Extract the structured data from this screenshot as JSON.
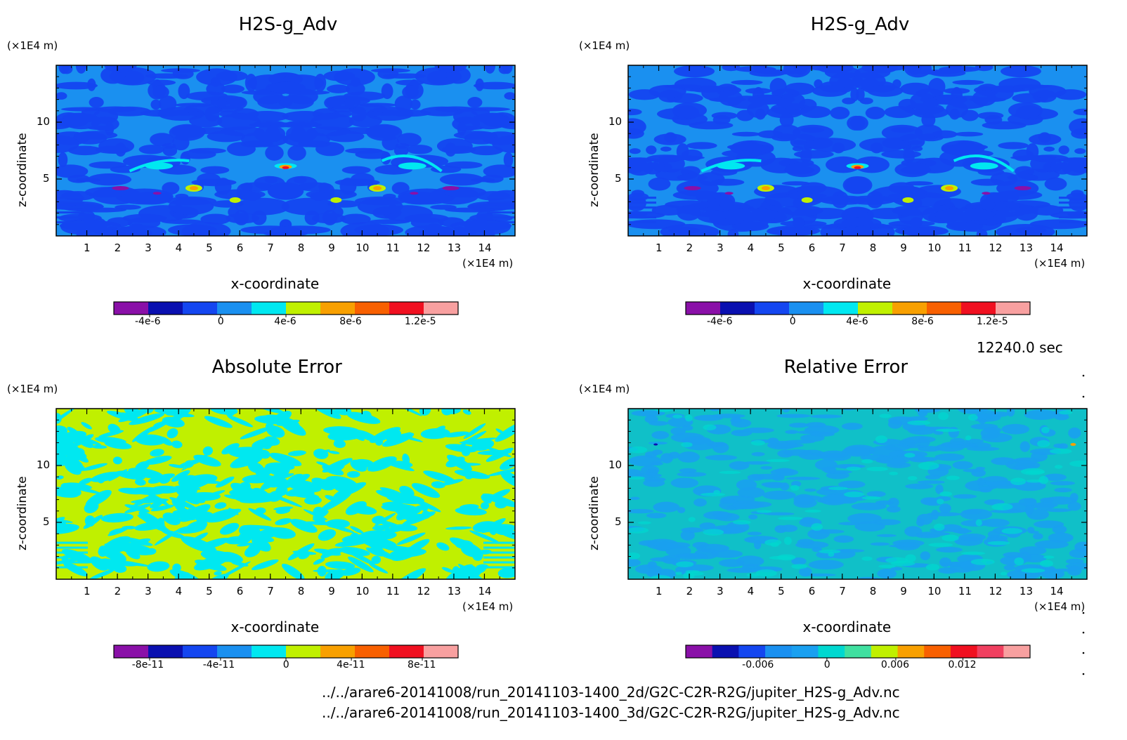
{
  "time_label": "12240.0 sec",
  "file_paths": [
    "../../arare6-20141008/run_20141103-1400_2d/G2C-C2R-R2G/jupiter_H2S-g_Adv.nc",
    "../../arare6-20141008/run_20141103-1400_3d/G2C-C2R-R2G/jupiter_H2S-g_Adv.nc"
  ],
  "chart_data": [
    {
      "type": "heatmap",
      "title": "H2S-g_Adv",
      "xlabel": "x-coordinate",
      "ylabel": "z-coordinate",
      "x_unit": "(×1E4 m)",
      "y_unit": "(×1E4 m)",
      "xlim": [
        0,
        15
      ],
      "ylim": [
        0,
        15
      ],
      "x_ticks": [
        "1",
        "2",
        "3",
        "4",
        "5",
        "6",
        "7",
        "8",
        "9",
        "10",
        "11",
        "12",
        "13",
        "14"
      ],
      "y_ticks": [
        "5",
        "10"
      ],
      "colorbar": {
        "colors": [
          "#8a10a8",
          "#0a10b0",
          "#1446f0",
          "#1a90f0",
          "#00e8f0",
          "#c0f000",
          "#f8a000",
          "#f86000",
          "#f01020",
          "#f8a0a0"
        ],
        "tick_labels": [
          "-4e-6",
          "0",
          "4e-6",
          "8e-6",
          "1.2e-5"
        ]
      },
      "pattern": "plume"
    },
    {
      "type": "heatmap",
      "title": "H2S-g_Adv",
      "xlabel": "x-coordinate",
      "ylabel": "z-coordinate",
      "x_unit": "(×1E4 m)",
      "y_unit": "(×1E4 m)",
      "xlim": [
        0,
        15
      ],
      "ylim": [
        0,
        15
      ],
      "x_ticks": [
        "1",
        "2",
        "3",
        "4",
        "5",
        "6",
        "7",
        "8",
        "9",
        "10",
        "11",
        "12",
        "13",
        "14"
      ],
      "y_ticks": [
        "5",
        "10"
      ],
      "colorbar": {
        "colors": [
          "#8a10a8",
          "#0a10b0",
          "#1446f0",
          "#1a90f0",
          "#00e8f0",
          "#c0f000",
          "#f8a000",
          "#f86000",
          "#f01020",
          "#f8a0a0"
        ],
        "tick_labels": [
          "-4e-6",
          "0",
          "4e-6",
          "8e-6",
          "1.2e-5"
        ]
      },
      "pattern": "plume"
    },
    {
      "type": "heatmap",
      "title": "Absolute Error",
      "xlabel": "x-coordinate",
      "ylabel": "z-coordinate",
      "x_unit": "(×1E4 m)",
      "y_unit": "(×1E4 m)",
      "xlim": [
        0,
        15
      ],
      "ylim": [
        0,
        15
      ],
      "x_ticks": [
        "1",
        "2",
        "3",
        "4",
        "5",
        "6",
        "7",
        "8",
        "9",
        "10",
        "11",
        "12",
        "13",
        "14"
      ],
      "y_ticks": [
        "5",
        "10"
      ],
      "colorbar": {
        "colors": [
          "#8a10a8",
          "#0a10b0",
          "#1446f0",
          "#1a90f0",
          "#00e8f0",
          "#c0f000",
          "#f8a000",
          "#f86000",
          "#f01020",
          "#f8a0a0"
        ],
        "tick_labels": [
          "-8e-11",
          "-4e-11",
          "0",
          "4e-11",
          "8e-11"
        ]
      },
      "pattern": "abs_error"
    },
    {
      "type": "heatmap",
      "title": "Relative Error",
      "xlabel": "x-coordinate",
      "ylabel": "z-coordinate",
      "x_unit": "(×1E4 m)",
      "y_unit": "(×1E4 m)",
      "xlim": [
        0,
        15
      ],
      "ylim": [
        0,
        15
      ],
      "x_ticks": [
        "1",
        "2",
        "3",
        "4",
        "5",
        "6",
        "7",
        "8",
        "9",
        "10",
        "11",
        "12",
        "13",
        "14"
      ],
      "y_ticks": [
        "5",
        "10"
      ],
      "colorbar": {
        "colors": [
          "#8a10a8",
          "#0a10b0",
          "#1446f0",
          "#1a90f0",
          "#1aa0f0",
          "#00d8d0",
          "#40e0a0",
          "#c0f000",
          "#f8a000",
          "#f86000",
          "#f01020",
          "#f04060",
          "#f8a0a0"
        ],
        "tick_labels": [
          "-0.006",
          "0",
          "0.006",
          "0.012"
        ]
      },
      "pattern": "rel_error"
    }
  ]
}
